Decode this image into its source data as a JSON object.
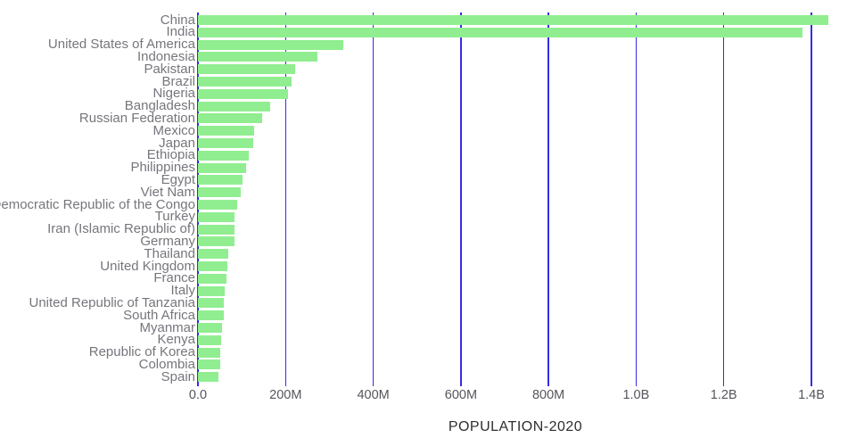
{
  "chart_data": {
    "type": "bar",
    "orientation": "horizontal",
    "title": "",
    "xlabel": "POPULATION-2020",
    "ylabel": "",
    "categories": [
      "China",
      "India",
      "United States of America",
      "Indonesia",
      "Pakistan",
      "Brazil",
      "Nigeria",
      "Bangladesh",
      "Russian Federation",
      "Mexico",
      "Japan",
      "Ethiopia",
      "Philippines",
      "Egypt",
      "Viet Nam",
      "Democratic Republic of the Congo",
      "Turkey",
      "Iran (Islamic Republic of)",
      "Germany",
      "Thailand",
      "United Kingdom",
      "France",
      "Italy",
      "United Republic of Tanzania",
      "South Africa",
      "Myanmar",
      "Kenya",
      "Republic of Korea",
      "Colombia",
      "Spain"
    ],
    "values_millions": [
      1439.3,
      1380.0,
      331.0,
      273.5,
      220.9,
      212.6,
      206.1,
      164.7,
      145.9,
      128.9,
      126.5,
      115.0,
      109.6,
      102.3,
      97.3,
      89.6,
      84.3,
      84.0,
      83.8,
      69.8,
      67.9,
      65.3,
      60.5,
      59.7,
      59.3,
      54.4,
      53.8,
      51.3,
      50.9,
      46.8
    ],
    "x_ticks": [
      {
        "label": "0.0",
        "millions": 0
      },
      {
        "label": "200M",
        "millions": 200
      },
      {
        "label": "400M",
        "millions": 400
      },
      {
        "label": "600M",
        "millions": 600
      },
      {
        "label": "800M",
        "millions": 800
      },
      {
        "label": "1.0B",
        "millions": 1000
      },
      {
        "label": "1.2B",
        "millions": 1200
      },
      {
        "label": "1.4B",
        "millions": 1400
      }
    ],
    "xlim_millions": [
      0,
      1450
    ],
    "grid": "vertical-gridlines-on",
    "legend": "none",
    "colors": {
      "bar": "#90ee90",
      "gridline": "#352de2",
      "category_label": "#77757c",
      "tick_label": "#56555c",
      "axis_title": "#2e2e2e",
      "background": "#ffffff"
    }
  }
}
